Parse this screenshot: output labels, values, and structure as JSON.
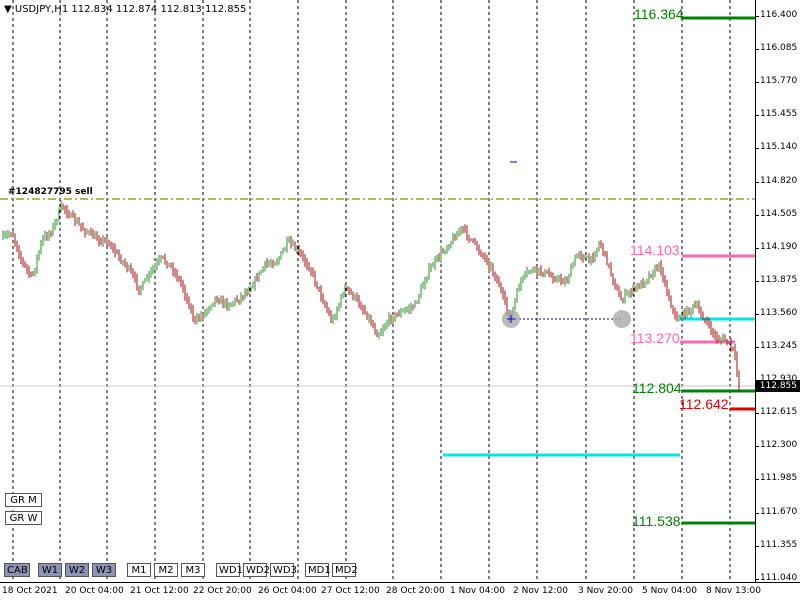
{
  "header": {
    "symbol": "USDJPY,H1",
    "ohlc": "112.834 112.874 112.813 112.855"
  },
  "order_label": "#124827795 sell",
  "levels": {
    "l116364": "116.364",
    "l114103": "114.103",
    "l113270": "113.270",
    "l112804": "112.804",
    "l112642": "112.642",
    "l111538": "111.538"
  },
  "colors": {
    "green": "#008000",
    "pink": "#ff69b4",
    "cyan": "#00e5ee",
    "red": "#e00000",
    "olive": "#a08000",
    "bull": "#2a8f2a",
    "bear": "#a01010"
  },
  "current_price": "112.855",
  "y_axis_ticks": [
    "116.400",
    "116.085",
    "115.770",
    "115.455",
    "115.140",
    "114.820",
    "114.505",
    "114.190",
    "113.875",
    "113.560",
    "113.245",
    "112.930",
    "112.615",
    "112.300",
    "111.985",
    "111.670",
    "111.355",
    "111.040"
  ],
  "x_axis_ticks": [
    "18 Oct 2021",
    "20 Oct 04:00",
    "21 Oct 12:00",
    "22 Oct 20:00",
    "26 Oct 04:00",
    "27 Oct 12:00",
    "28 Oct 20:00",
    "1 Nov 04:00",
    "2 Nov 12:00",
    "3 Nov 20:00",
    "5 Nov 04:00",
    "8 Nov 13:00"
  ],
  "side_buttons": [
    "GR M",
    "GR W"
  ],
  "bottom_buttons": [
    {
      "label": "CAB",
      "selected": true
    },
    {
      "label": "W1",
      "selected": true
    },
    {
      "label": "W2",
      "selected": true
    },
    {
      "label": "W3",
      "selected": true
    },
    {
      "label": "M1",
      "selected": false
    },
    {
      "label": "M2",
      "selected": false
    },
    {
      "label": "M3",
      "selected": false
    },
    {
      "label": "WD1",
      "selected": false
    },
    {
      "label": "WD2",
      "selected": false
    },
    {
      "label": "WD3",
      "selected": false
    },
    {
      "label": "MD1",
      "selected": false
    },
    {
      "label": "MD2",
      "selected": false
    }
  ]
}
